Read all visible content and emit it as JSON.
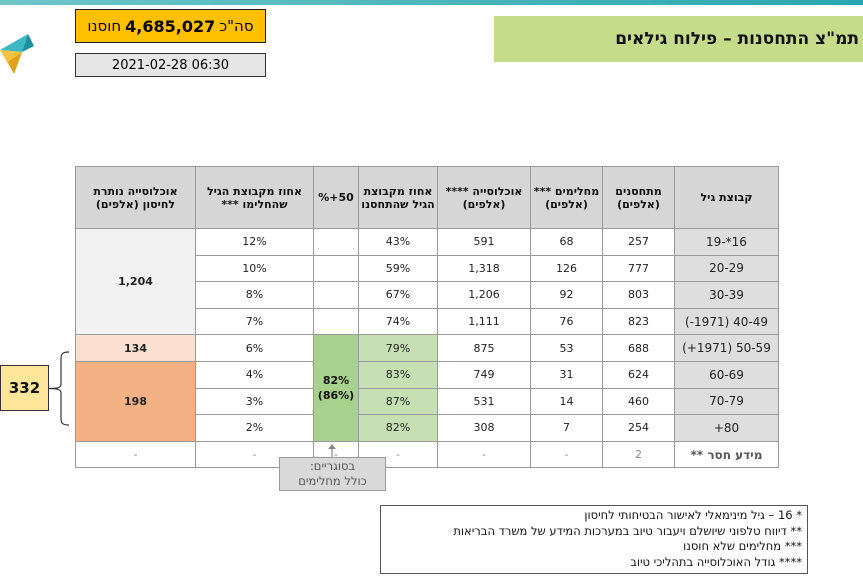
{
  "title": "תמ\"צ התחסנות – פילוח גילאים",
  "total": {
    "prefix": "סה\"כ",
    "value": "4,685,027",
    "suffix": "חוסנו"
  },
  "timestamp": "2021-02-28 06:30",
  "headers": {
    "age_group": "קבוצת גיל",
    "vaccinated": "מתחסנים (אלפים)",
    "recovered": "מחלימים *** (אלפים)",
    "population": "אוכלוסייה **** (אלפים)",
    "pct_vaccinated": "אחוז מקבוצת הגיל שהתחסנו",
    "fifty_plus": "50+%",
    "pct_recovered": "אחוז מקבוצת הגיל שהחלימו ***",
    "remaining": "אוכלוסייה נותרת לחיסון (אלפים)"
  },
  "rows": [
    {
      "age": "16*-19",
      "vaccinated": "257",
      "recovered": "68",
      "population": "591",
      "pct_vaccinated": "43%",
      "pct_recovered": "12%"
    },
    {
      "age": "20-29",
      "vaccinated": "777",
      "recovered": "126",
      "population": "1,318",
      "pct_vaccinated": "59%",
      "pct_recovered": "10%"
    },
    {
      "age": "30-39",
      "vaccinated": "803",
      "recovered": "92",
      "population": "1,206",
      "pct_vaccinated": "67%",
      "pct_recovered": "8%"
    },
    {
      "age": "40-49 (1971-)",
      "vaccinated": "823",
      "recovered": "76",
      "population": "1,111",
      "pct_vaccinated": "74%",
      "pct_recovered": "7%"
    },
    {
      "age": "50-59 (1971+)",
      "vaccinated": "688",
      "recovered": "53",
      "population": "875",
      "pct_vaccinated": "79%",
      "pct_recovered": "6%"
    },
    {
      "age": "60-69",
      "vaccinated": "624",
      "recovered": "31",
      "population": "749",
      "pct_vaccinated": "83%",
      "pct_recovered": "4%"
    },
    {
      "age": "70-79",
      "vaccinated": "460",
      "recovered": "14",
      "population": "531",
      "pct_vaccinated": "87%",
      "pct_recovered": "3%"
    },
    {
      "age": "80+",
      "vaccinated": "254",
      "recovered": "7",
      "population": "308",
      "pct_vaccinated": "82%",
      "pct_recovered": "2%"
    }
  ],
  "missing_row": {
    "age": "מידע חסר **",
    "vaccinated": "2",
    "recovered": "-",
    "population": "-",
    "pct_vaccinated": "-",
    "fifty_plus": "-",
    "pct_recovered": "-",
    "remaining": "-"
  },
  "remaining_groups": {
    "under_50": "1,204",
    "age_50_59": "134",
    "age_60_plus": "198"
  },
  "fifty_plus_value": "82%",
  "fifty_plus_sub": "(86%)",
  "remaining_50plus_total": "332",
  "note": {
    "line1": "בסוגריים:",
    "line2": "כולל מחלימים"
  },
  "footnotes": [
    "* 16 – גיל מינימאלי לאישור הבטיחותי לחיסון",
    "** דיווח טלפוני שיושלם ויעבור טיוב במערכות המידע של משרד הבריאות",
    "*** מחלימים שלא חוסנו",
    "**** גודל האוכלוסייה בתהליכי טיוב"
  ],
  "colors": {
    "title_bg": "#c5dc8b",
    "total_bg": "#ffc000",
    "highlight_green": "#c6e0b4",
    "highlight_orange": "#f4b183",
    "big_box_bg": "#ffe599"
  }
}
